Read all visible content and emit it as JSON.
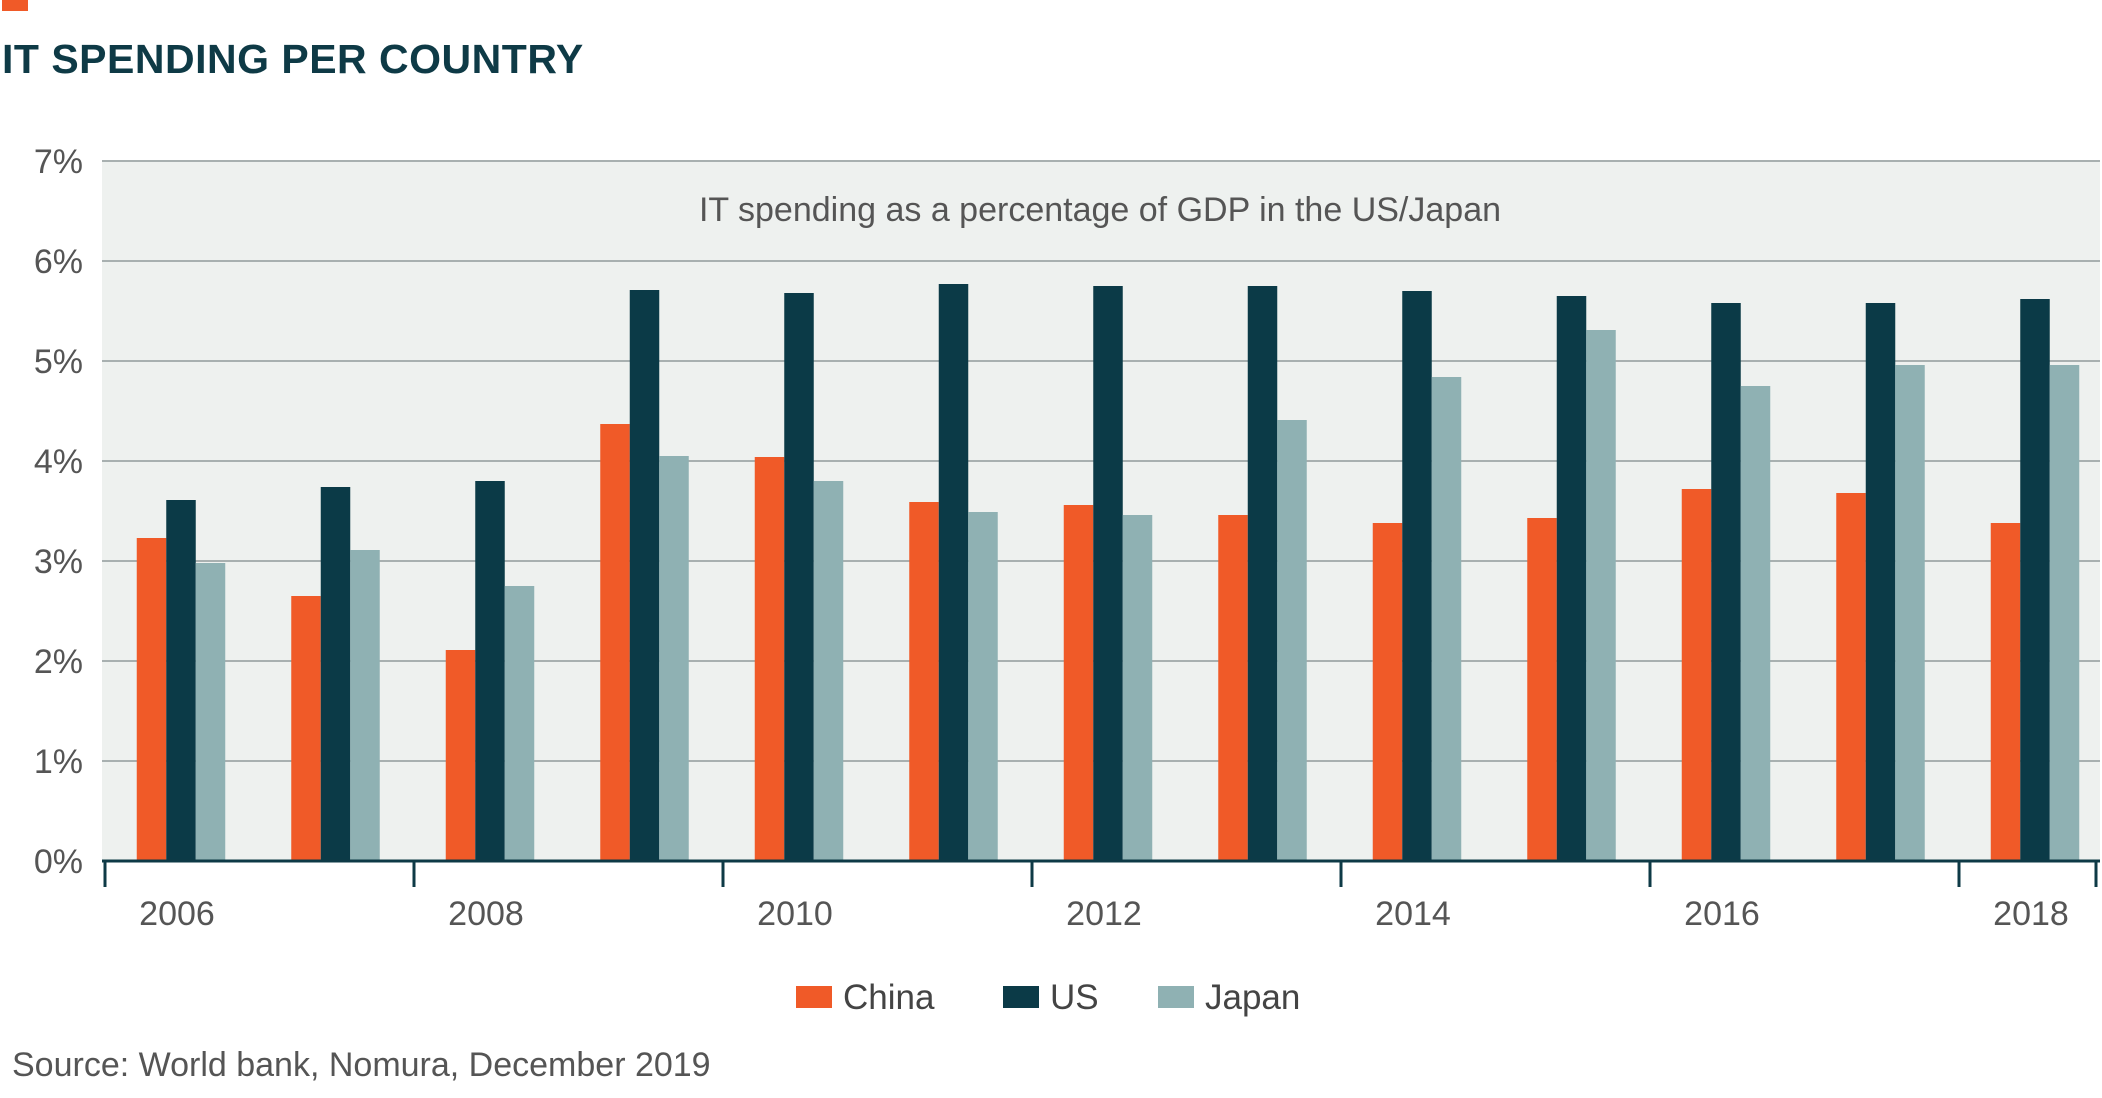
{
  "title": "IT SPENDING PER COUNTRY",
  "source": "Source: World bank, Nomura, December 2019",
  "colors": {
    "title": "#0E3A46",
    "accent": "#F05A28",
    "plot_background": "#EEF1EF",
    "gridline": "#A8B0B0",
    "axis": "#0E3A46",
    "tick_text": "#555555"
  },
  "chart_data": {
    "type": "bar",
    "annotation": "IT spending as a percentage of GDP in the US/Japan",
    "categories": [
      "2006",
      "2007",
      "2008",
      "2009",
      "2010",
      "2011",
      "2012",
      "2013",
      "2014",
      "2015",
      "2016",
      "2017",
      "2018"
    ],
    "x_tick_labels": [
      "2006",
      "2008",
      "2010",
      "2012",
      "2014",
      "2016",
      "2018"
    ],
    "y_tick_labels": [
      "0%",
      "1%",
      "2%",
      "3%",
      "4%",
      "5%",
      "6%",
      "7%"
    ],
    "ylim": [
      0,
      7
    ],
    "y_unit": "%",
    "grid": true,
    "legend_position": "bottom-center",
    "series": [
      {
        "name": "China",
        "color": "#F05A28",
        "values": [
          3.23,
          2.65,
          2.11,
          4.37,
          4.04,
          3.59,
          3.56,
          3.46,
          3.38,
          3.43,
          3.72,
          3.68,
          3.38
        ]
      },
      {
        "name": "US",
        "color": "#0B3A47",
        "values": [
          3.61,
          3.74,
          3.8,
          5.71,
          5.68,
          5.77,
          5.75,
          5.75,
          5.7,
          5.65,
          5.58,
          5.58,
          5.62
        ]
      },
      {
        "name": "Japan",
        "color": "#8FB1B3",
        "values": [
          2.98,
          3.11,
          2.75,
          4.05,
          3.8,
          3.49,
          3.46,
          4.41,
          4.84,
          5.31,
          4.75,
          4.96,
          4.96
        ]
      }
    ]
  }
}
